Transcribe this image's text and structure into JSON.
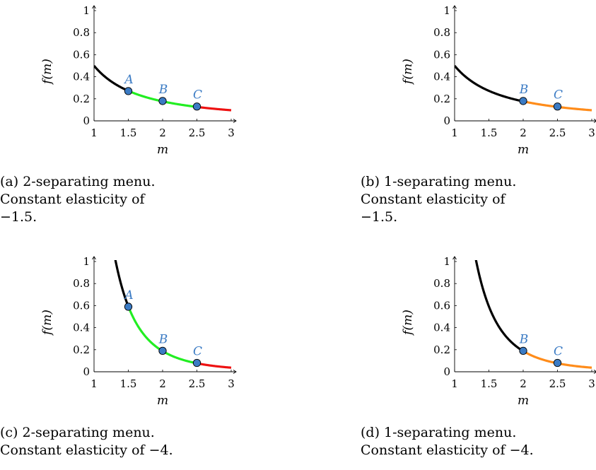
{
  "chart_data": [
    {
      "type": "line",
      "xlabel": "m",
      "ylabel": "f(m)",
      "xlim": [
        1,
        3
      ],
      "ylim": [
        0,
        1
      ],
      "xticks": [
        "1",
        "1.5",
        "2",
        "2.5",
        "3"
      ],
      "yticks": [
        "0",
        "0.2",
        "0.4",
        "0.6",
        "0.8",
        "1"
      ],
      "grid": false,
      "elasticity": -1.5,
      "function_scale": 0.5,
      "segments": [
        {
          "from": 1.0,
          "to": 1.5,
          "color": "#000000"
        },
        {
          "from": 1.5,
          "to": 2.5,
          "color": "#22ee22"
        },
        {
          "from": 2.5,
          "to": 3.0,
          "color": "#ee1111"
        }
      ],
      "points": [
        {
          "label": "A",
          "x": 1.5,
          "y": 0.27
        },
        {
          "label": "B",
          "x": 2.0,
          "y": 0.18
        },
        {
          "label": "C",
          "x": 2.5,
          "y": 0.13
        }
      ],
      "caption": [
        "(a) 2-separating menu.",
        "Constant elasticity of",
        "−1.5."
      ]
    },
    {
      "type": "line",
      "xlabel": "m",
      "ylabel": "f(m)",
      "xlim": [
        1,
        3
      ],
      "ylim": [
        0,
        1
      ],
      "xticks": [
        "1",
        "1.5",
        "2",
        "2.5",
        "3"
      ],
      "yticks": [
        "0",
        "0.2",
        "0.4",
        "0.6",
        "0.8",
        "1"
      ],
      "grid": false,
      "elasticity": -1.5,
      "function_scale": 0.5,
      "segments": [
        {
          "from": 1.0,
          "to": 2.0,
          "color": "#000000"
        },
        {
          "from": 2.0,
          "to": 3.0,
          "color": "#ff8c1a"
        }
      ],
      "points": [
        {
          "label": "B",
          "x": 2.0,
          "y": 0.18
        },
        {
          "label": "C",
          "x": 2.5,
          "y": 0.13
        }
      ],
      "caption": [
        "(b) 1-separating menu.",
        "Constant elasticity of",
        "−1.5."
      ]
    },
    {
      "type": "line",
      "xlabel": "m",
      "ylabel": "f(m)",
      "xlim": [
        1,
        3
      ],
      "ylim": [
        0,
        1
      ],
      "xticks": [
        "1",
        "1.5",
        "2",
        "2.5",
        "3"
      ],
      "yticks": [
        "0",
        "0.2",
        "0.4",
        "0.6",
        "0.8",
        "1"
      ],
      "grid": false,
      "elasticity": -4,
      "function_scale": 3,
      "segments": [
        {
          "from": 1.0,
          "to": 1.5,
          "color": "#000000"
        },
        {
          "from": 1.5,
          "to": 2.5,
          "color": "#22ee22"
        },
        {
          "from": 2.5,
          "to": 3.0,
          "color": "#ee1111"
        }
      ],
      "points": [
        {
          "label": "A",
          "x": 1.5,
          "y": 0.59
        },
        {
          "label": "B",
          "x": 2.0,
          "y": 0.19
        },
        {
          "label": "C",
          "x": 2.5,
          "y": 0.08
        }
      ],
      "caption": [
        "(c) 2-separating menu.",
        "Constant elasticity of −4."
      ]
    },
    {
      "type": "line",
      "xlabel": "m",
      "ylabel": "f(m)",
      "xlim": [
        1,
        3
      ],
      "ylim": [
        0,
        1
      ],
      "xticks": [
        "1",
        "1.5",
        "2",
        "2.5",
        "3"
      ],
      "yticks": [
        "0",
        "0.2",
        "0.4",
        "0.6",
        "0.8",
        "1"
      ],
      "grid": false,
      "elasticity": -4,
      "function_scale": 3,
      "segments": [
        {
          "from": 1.0,
          "to": 2.0,
          "color": "#000000"
        },
        {
          "from": 2.0,
          "to": 3.0,
          "color": "#ff8c1a"
        }
      ],
      "points": [
        {
          "label": "B",
          "x": 2.0,
          "y": 0.19
        },
        {
          "label": "C",
          "x": 2.5,
          "y": 0.08
        }
      ],
      "caption": [
        "(d) 1-separating menu.",
        "Constant elasticity of −4."
      ]
    }
  ],
  "colors": {
    "point_fill": "#3b7bc4",
    "point_label": "#3b7bc4",
    "axis": "#000000"
  }
}
